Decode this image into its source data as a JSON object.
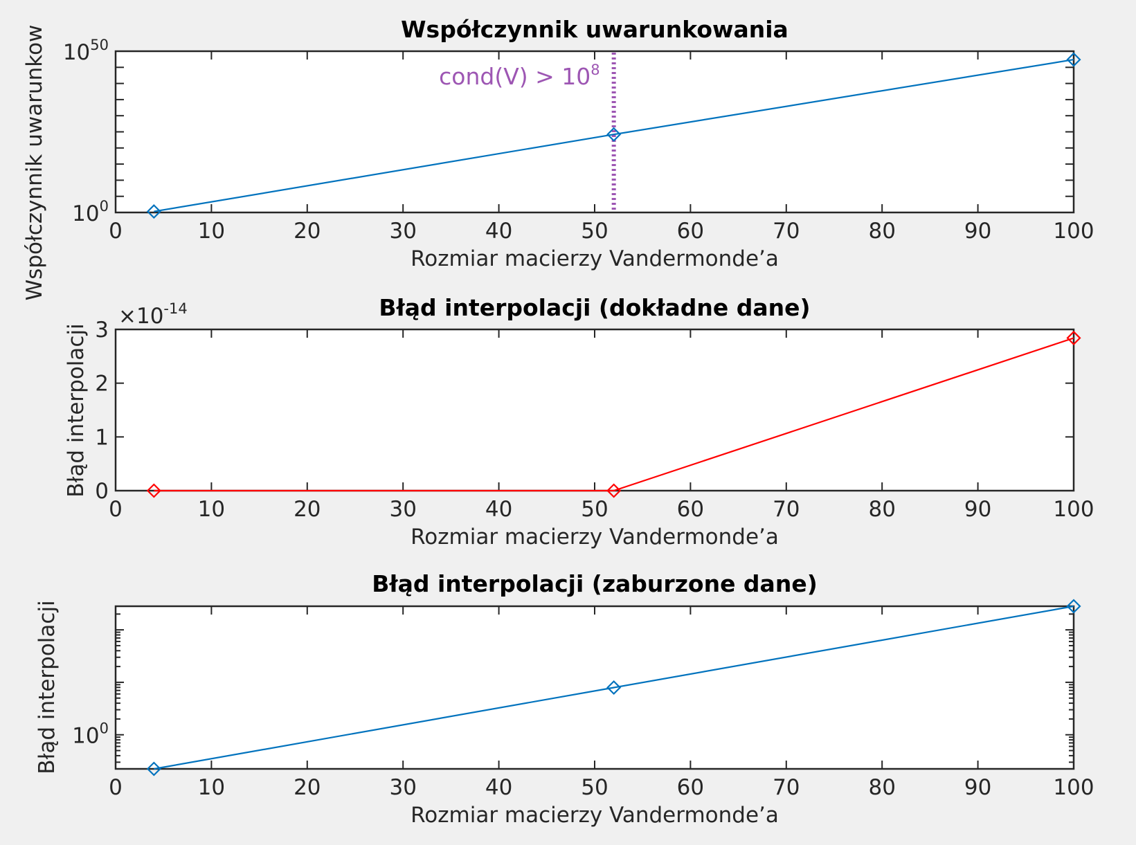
{
  "chart_data": [
    {
      "type": "line",
      "title": "Współczynnik uwarunkowania",
      "xlabel": "Rozmiar macierzy Vandermonde’a",
      "ylabel": "Współczynnik uwarunkow",
      "yscale": "log",
      "xlim": [
        0,
        100
      ],
      "ylim_exp": [
        0,
        50
      ],
      "xticks": [
        "0",
        "10",
        "20",
        "30",
        "40",
        "50",
        "60",
        "70",
        "80",
        "90",
        "100"
      ],
      "yticks": [
        {
          "exp": 0,
          "base": "10",
          "sup": "0"
        },
        {
          "exp": 50,
          "base": "10",
          "sup": "50"
        }
      ],
      "series": [
        {
          "color": "#0072bd",
          "marker": "diamond",
          "x": [
            4,
            52,
            100
          ],
          "y_exp": [
            0.3,
            24.2,
            47.4
          ]
        }
      ],
      "annotations": [
        {
          "kind": "vline",
          "x": 52,
          "style": "dotted",
          "color": "#9d56b3",
          "label_base": "cond(V) > 10",
          "label_sup": "8"
        }
      ]
    },
    {
      "type": "line",
      "title": "Błąd interpolacji (dokładne dane)",
      "xlabel": "Rozmiar macierzy Vandermonde’a",
      "ylabel": "Błąd interpolacji",
      "yscale": "linear",
      "exponent_label": {
        "base": "×10",
        "sup": "-14"
      },
      "xlim": [
        0,
        100
      ],
      "ylim": [
        0,
        3
      ],
      "xticks": [
        "0",
        "10",
        "20",
        "30",
        "40",
        "50",
        "60",
        "70",
        "80",
        "90",
        "100"
      ],
      "yticks": [
        "0",
        "1",
        "2",
        "3"
      ],
      "series": [
        {
          "color": "#ff0000",
          "marker": "diamond",
          "x": [
            4,
            52,
            100
          ],
          "y": [
            0,
            0,
            2.84
          ]
        }
      ]
    },
    {
      "type": "line",
      "title": "Błąd interpolacji (zaburzone dane)",
      "xlabel": "Rozmiar macierzy Vandermonde’a",
      "ylabel": "Błąd interpolacji",
      "yscale": "log",
      "xlim": [
        0,
        100
      ],
      "ylim_exp": [
        -0.65,
        2.45
      ],
      "xticks": [
        "0",
        "10",
        "20",
        "30",
        "40",
        "50",
        "60",
        "70",
        "80",
        "90",
        "100"
      ],
      "yticks": [
        {
          "exp": 0,
          "base": "10",
          "sup": "0"
        }
      ],
      "series": [
        {
          "color": "#0072bd",
          "marker": "diamond",
          "x": [
            4,
            52,
            100
          ],
          "y_exp": [
            -0.65,
            0.9,
            2.45
          ]
        }
      ]
    }
  ]
}
